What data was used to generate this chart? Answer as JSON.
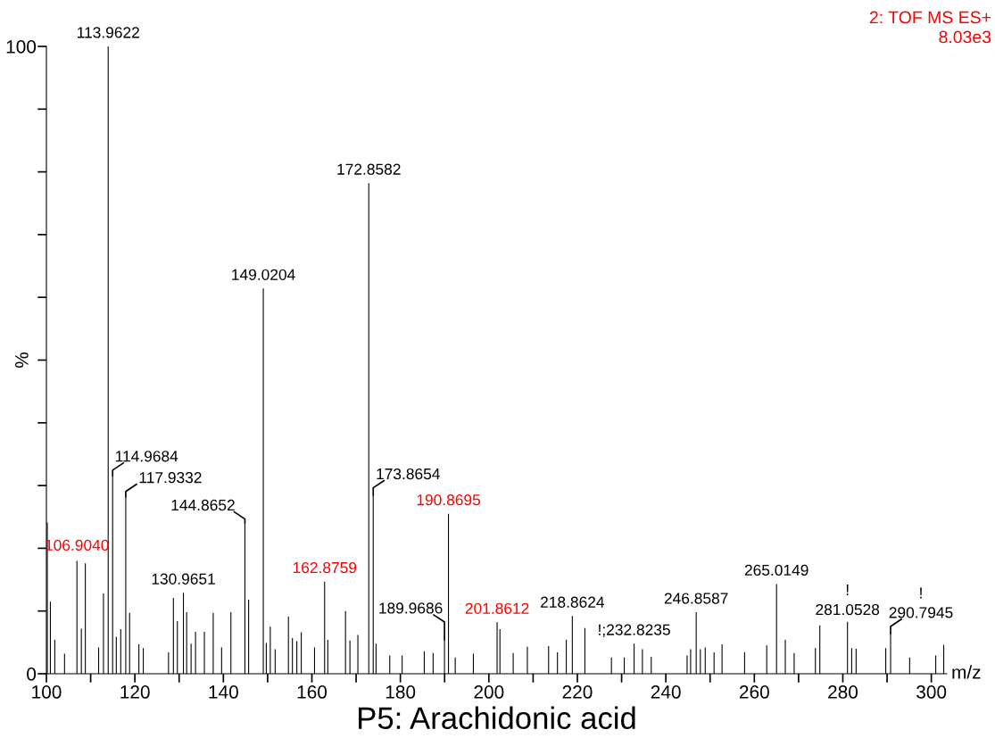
{
  "chart_data": {
    "type": "bar",
    "title": "P5: Arachidonic acid",
    "xlabel": "m/z",
    "ylabel": "%",
    "color": "#000000",
    "x": [
      100.2,
      100.9,
      101.9,
      104.1,
      106.904,
      107.9,
      108.8,
      111.8,
      112.9,
      113.9622,
      114.9684,
      115.8,
      116.8,
      117.9332,
      118.8,
      120.9,
      121.9,
      127.6,
      128.7,
      129.6,
      130.9651,
      131.7,
      132.7,
      133.7,
      135.7,
      137.7,
      139.6,
      141.7,
      144.8652,
      145.7,
      149.0204,
      149.7,
      150.6,
      151.7,
      154.7,
      155.6,
      156.6,
      157.6,
      160.6,
      162.8759,
      163.6,
      167.6,
      168.6,
      170.4,
      172.8582,
      173.8654,
      174.5,
      177.6,
      180.4,
      185.4,
      187.4,
      189.9686,
      190.8695,
      192.4,
      196.5,
      201.8612,
      202.5,
      205.5,
      208.7,
      213.5,
      215.5,
      217.5,
      218.8624,
      221.7,
      227.7,
      230.6,
      232.8235,
      234.7,
      236.7,
      244.8,
      245.6,
      246.8587,
      247.8,
      248.9,
      250.9,
      252.7,
      257.8,
      262.8,
      265.0149,
      267.0,
      269.0,
      273.8,
      274.8,
      281.0528,
      282.0,
      283.0,
      289.7,
      290.7945,
      295.1,
      301.0,
      302.8
    ],
    "values": [
      24.1,
      11.5,
      5.4,
      3.2,
      18.0,
      7.2,
      17.6,
      4.2,
      12.8,
      100,
      31.6,
      5.9,
      7.1,
      28.2,
      9.7,
      4.7,
      4.1,
      3.4,
      12.1,
      8.4,
      12.9,
      9.8,
      4.8,
      6.7,
      6.7,
      9.7,
      4.2,
      9.8,
      24.1,
      11.8,
      61.4,
      4.9,
      7.5,
      3.9,
      9.1,
      5.7,
      5.2,
      6.6,
      4.2,
      14.7,
      5.4,
      10.0,
      5.3,
      6.2,
      78.2,
      28.5,
      4.8,
      2.9,
      2.9,
      3.6,
      3.3,
      5.4,
      25.5,
      2.6,
      3.2,
      8.2,
      7.1,
      3.3,
      4.3,
      4.4,
      3.4,
      5.4,
      9.2,
      7.3,
      2.6,
      2.6,
      4.8,
      3.9,
      2.7,
      2.9,
      3.9,
      9.8,
      3.9,
      4.2,
      3.4,
      4.7,
      3.4,
      4.5,
      14.3,
      5.4,
      3.3,
      4.1,
      7.7,
      8.3,
      4.1,
      4.0,
      4.1,
      6.4,
      2.6,
      2.9,
      4.6
    ],
    "xlim": [
      100,
      303.5
    ],
    "ylim": [
      0,
      100
    ],
    "xticks": [
      100,
      {
        "value": 110,
        "label": null
      },
      120,
      {
        "value": 130,
        "label": null
      },
      140,
      {
        "value": 150,
        "label": null
      },
      160,
      {
        "value": 170,
        "label": null
      },
      180,
      {
        "value": 190,
        "label": null
      },
      200,
      {
        "value": 210,
        "label": null
      },
      220,
      {
        "value": 230,
        "label": null
      },
      240,
      {
        "value": 250,
        "label": null
      },
      260,
      {
        "value": 270,
        "label": null
      },
      280,
      {
        "value": 290,
        "label": null
      },
      300
    ],
    "yticks": [
      0,
      {
        "value": 10,
        "label": null
      },
      {
        "value": 20,
        "label": null
      },
      {
        "value": 30,
        "label": null
      },
      {
        "value": 40,
        "label": null
      },
      {
        "value": 50,
        "label": null
      },
      {
        "value": 60,
        "label": null
      },
      {
        "value": 70,
        "label": null
      },
      {
        "value": 80,
        "label": null
      },
      {
        "value": 90,
        "label": null
      },
      100
    ],
    "grid": false,
    "annotations": [
      "2: TOF MS ES+",
      "8.03e3",
      {
        "text": "113.9622",
        "x": 113.9622,
        "y": 100
      },
      {
        "text": "114.9684",
        "x": 114.9684,
        "y": 31.6
      },
      {
        "text": "117.9332",
        "x": 117.9332,
        "y": 28.2
      },
      {
        "text": "144.8652",
        "x": 144.8652,
        "y": 24.1
      },
      {
        "text": "149.0204",
        "x": 149.0204,
        "y": 61.4
      },
      {
        "text": "172.8582",
        "x": 172.8582,
        "y": 78.2
      },
      {
        "text": "173.8654",
        "x": 173.8654,
        "y": 28.5
      },
      {
        "text": "190.8695",
        "x": 190.8695,
        "y": 25.5
      },
      {
        "text": "106.9040",
        "x": 106.904,
        "y": 18.0
      },
      {
        "text": "130.9651",
        "x": 130.9651,
        "y": 12.9
      },
      {
        "text": "162.8759",
        "x": 162.8759,
        "y": 14.7
      },
      {
        "text": "189.9686",
        "x": 189.9686,
        "y": 5.4
      },
      {
        "text": "201.8612",
        "x": 201.8612,
        "y": 8.2
      },
      {
        "text": "218.8624",
        "x": 218.8624,
        "y": 9.2
      },
      {
        "text": "!;232.8235",
        "x": 232.8235,
        "y": 4.8
      },
      {
        "text": "246.8587",
        "x": 246.8587,
        "y": 9.8
      },
      {
        "text": "265.0149",
        "x": 265.0149,
        "y": 14.3
      },
      {
        "text": "281.0528",
        "x": 281.0528,
        "y": 8.3
      },
      {
        "text": "!",
        "x": 281.0528,
        "y": 8.3
      },
      {
        "text": "290.7945",
        "x": 290.7945,
        "y": 6.4
      },
      {
        "text": "!",
        "x": 290.7945,
        "y": 6.4
      }
    ]
  }
}
